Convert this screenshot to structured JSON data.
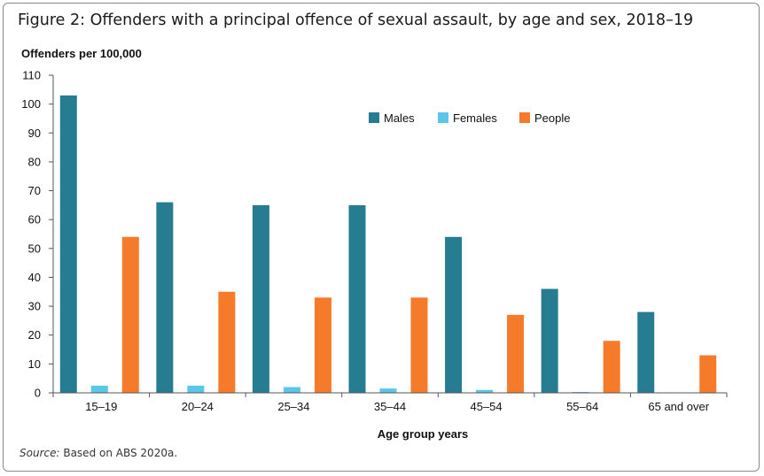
{
  "figure": {
    "title": "Figure 2: Offenders with a principal offence of sexual assault, by age and sex, 2018–19",
    "source_label": "Source:",
    "source_text": " Based on ABS 2020a."
  },
  "chart_data": {
    "type": "bar",
    "ylabel": "Offenders per 100,000",
    "xlabel": "Age group years",
    "ylim": [
      0,
      110
    ],
    "yticks": [
      0,
      10,
      20,
      30,
      40,
      50,
      60,
      70,
      80,
      90,
      100,
      110
    ],
    "categories": [
      "15–19",
      "20–24",
      "25–34",
      "35–44",
      "45–54",
      "55–64",
      "65 and over"
    ],
    "series": [
      {
        "name": "Males",
        "color": "#267D92",
        "values": [
          103,
          66,
          65,
          65,
          54,
          36,
          28
        ]
      },
      {
        "name": "Females",
        "color": "#5BC7E8",
        "values": [
          2.5,
          2.5,
          2,
          1.5,
          1,
          0.3,
          0
        ]
      },
      {
        "name": "People",
        "color": "#F57A2A",
        "values": [
          54,
          35,
          33,
          33,
          27,
          18,
          13
        ]
      }
    ],
    "legend_position": "top-right",
    "grid": false
  }
}
